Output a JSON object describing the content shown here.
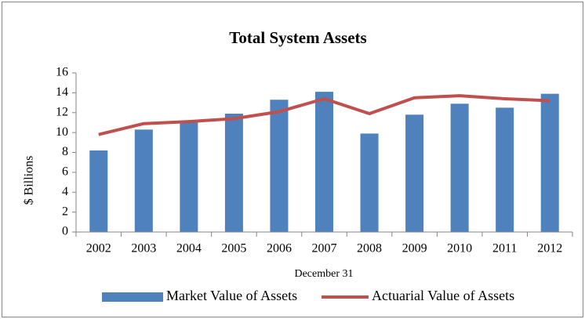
{
  "chart_data": {
    "type": "bar",
    "title": "Total System Assets",
    "y_label": "$ Billions",
    "x_label": "December 31",
    "categories": [
      "2002",
      "2003",
      "2004",
      "2005",
      "2006",
      "2007",
      "2008",
      "2009",
      "2010",
      "2011",
      "2012"
    ],
    "series": [
      {
        "name": "Market Value of Assets",
        "type": "bar",
        "color": "#4f81bd",
        "values": [
          8.2,
          10.3,
          11.0,
          11.9,
          13.3,
          14.1,
          9.9,
          11.8,
          12.9,
          12.5,
          13.9
        ]
      },
      {
        "name": "Actuarial Value of Assets",
        "type": "line",
        "color": "#c0504d",
        "values": [
          9.8,
          10.9,
          11.1,
          11.4,
          12.1,
          13.4,
          11.9,
          13.5,
          13.7,
          13.4,
          13.2
        ]
      }
    ],
    "ylim": [
      0,
      16
    ],
    "yticks": [
      0,
      2,
      4,
      6,
      8,
      10,
      12,
      14,
      16
    ],
    "grid": false,
    "legend": "bottom"
  }
}
